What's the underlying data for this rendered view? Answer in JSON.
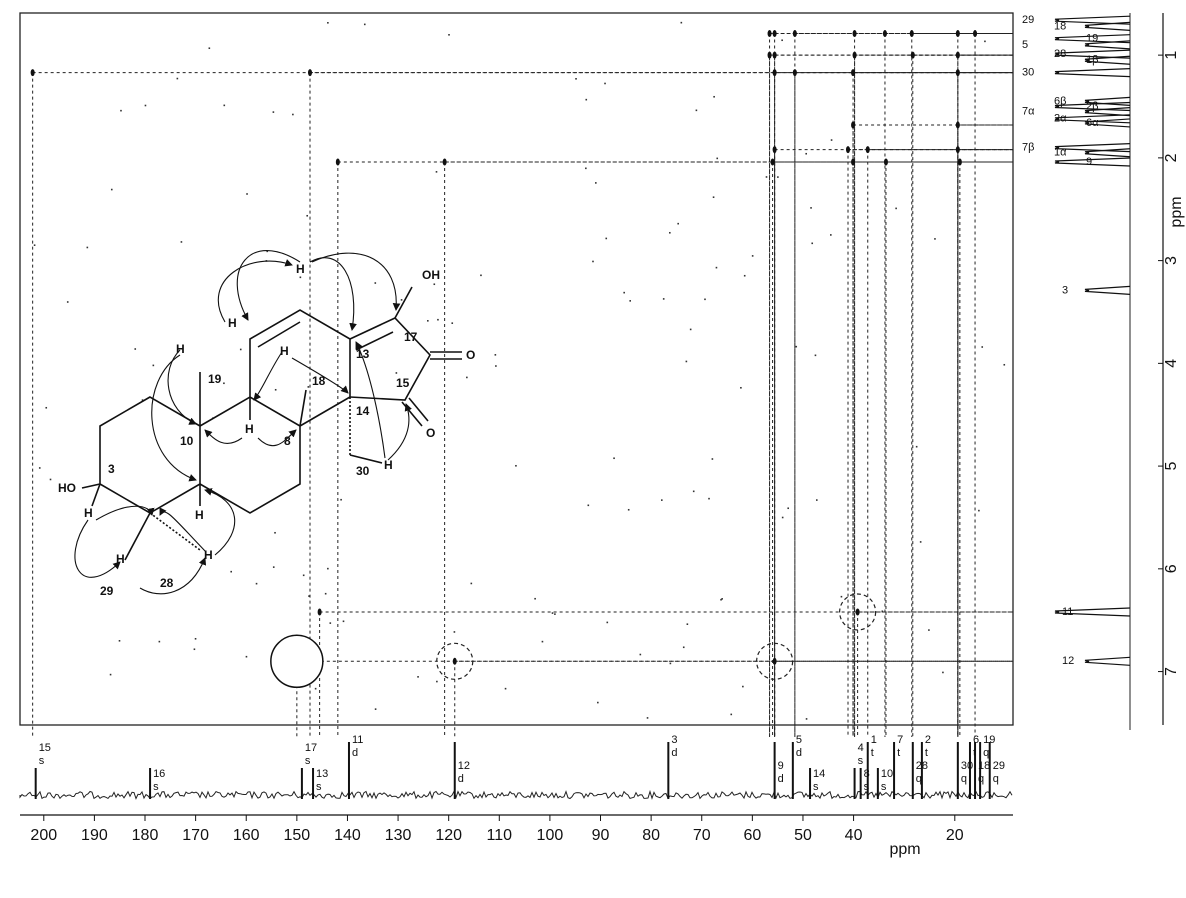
{
  "chart_data": {
    "type": "hmbc",
    "xlabel": "ppm",
    "ylabel": "ppm",
    "xlim": [
      204.7,
      8.5
    ],
    "xticks": [
      200,
      190,
      180,
      170,
      160,
      150,
      140,
      130,
      120,
      110,
      100,
      90,
      80,
      70,
      60,
      50,
      40,
      20
    ],
    "ylim": [
      0.59,
      7.52
    ],
    "yticks": [
      1,
      2,
      3,
      4,
      5,
      6,
      7
    ],
    "c_signals": {
      "labels": [
        "15",
        "16",
        "17",
        "13",
        "11",
        "12",
        "3",
        "9",
        "5",
        "14",
        "4",
        "8",
        "1",
        "10",
        "7",
        "28",
        "2",
        "30",
        "6",
        "18",
        "19",
        "29"
      ],
      "mult": [
        "s",
        "s",
        "s",
        "s",
        "d",
        "d",
        "d",
        "d",
        "d",
        "s",
        "s",
        "s",
        "t",
        "s",
        "t",
        "q",
        "t",
        "q",
        "t",
        "q",
        "q",
        "q"
      ],
      "values": [
        201.6,
        179.0,
        149.0,
        146.8,
        139.7,
        118.8,
        76.6,
        55.6,
        52.0,
        48.6,
        39.8,
        38.6,
        37.2,
        35.2,
        32.0,
        28.3,
        26.5,
        19.4,
        17.0,
        16.0,
        15.0,
        13.1
      ]
    },
    "h_signals": {
      "labels": [
        "29",
        "18",
        "19",
        "5",
        "28",
        "1β",
        "30",
        "6β",
        "2β",
        "7α",
        "2α",
        "6α",
        "7β",
        "1α",
        "9",
        "3",
        "11",
        "12"
      ],
      "values": [
        0.66,
        0.72,
        0.84,
        0.9,
        0.99,
        1.05,
        1.17,
        1.45,
        1.5,
        1.55,
        1.62,
        1.66,
        1.9,
        1.95,
        2.04,
        3.29,
        6.42,
        6.9
      ]
    },
    "series": [
      {
        "marker": "dot",
        "x": [
          56.6,
          55.6,
          51.6,
          39.8,
          33.8,
          28.5,
          19.4,
          16.0,
          56.6,
          55.6,
          39.8,
          28.3,
          19.4,
          202.2,
          147.4,
          55.6,
          51.6,
          40.1,
          19.4,
          40.1,
          19.4,
          55.6,
          41.1,
          37.2,
          19.4,
          141.9,
          120.8,
          56.0,
          40.1,
          33.6,
          19.0,
          145.5
        ],
        "y": [
          0.79,
          0.79,
          0.79,
          0.79,
          0.79,
          0.79,
          0.79,
          0.79,
          1.0,
          1.0,
          1.0,
          1.0,
          1.0,
          1.17,
          1.17,
          1.17,
          1.17,
          1.17,
          1.17,
          1.68,
          1.68,
          1.92,
          1.92,
          1.92,
          1.92,
          2.04,
          2.04,
          2.04,
          2.04,
          2.04,
          2.04,
          6.42
        ]
      },
      {
        "marker": "dashed-circle",
        "x": [
          118.8,
          55.6,
          39.2
        ],
        "y": [
          6.9,
          6.9,
          6.42
        ]
      },
      {
        "marker": "solid-circle",
        "x": [
          150.0
        ],
        "y": [
          6.9
        ]
      }
    ]
  },
  "structure": {
    "labels": [
      "OH",
      "17",
      "13",
      "O",
      "15",
      "O",
      "14",
      "18",
      "19",
      "10",
      "8",
      "30",
      "HO",
      "3",
      "29",
      "28",
      "H",
      "H",
      "H",
      "H",
      "H",
      "H",
      "H",
      "H",
      "H",
      "H"
    ]
  }
}
